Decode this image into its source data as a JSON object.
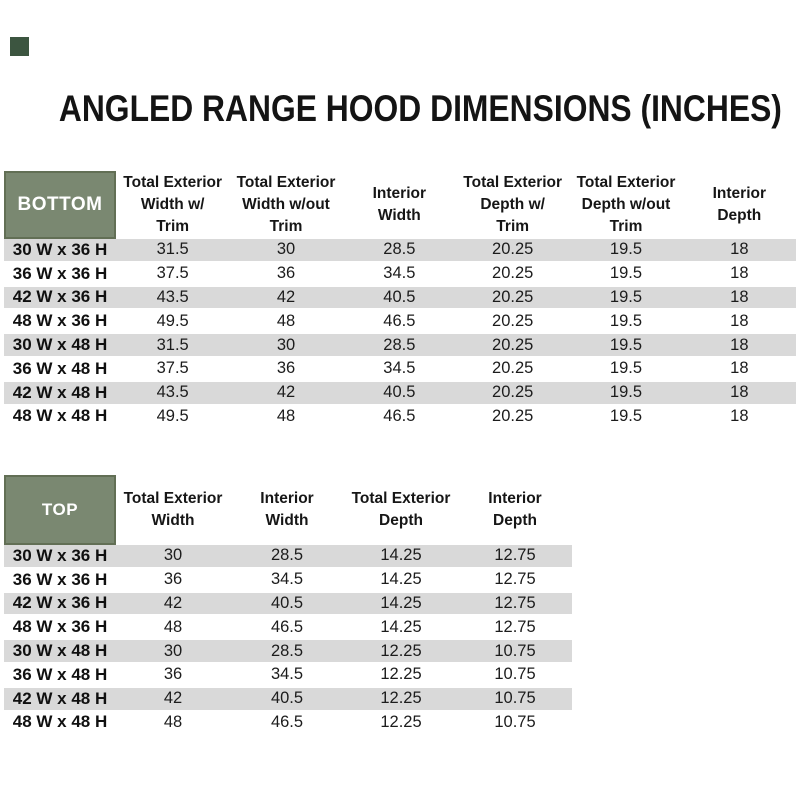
{
  "page": {
    "title": "ANGLED RANGE HOOD DIMENSIONS (INCHES)"
  },
  "colors": {
    "header_green": "#7a8871",
    "header_green_border": "#626f55",
    "stripe_gray": "#d9d9d9",
    "marker_green": "#3c5540"
  },
  "bottom_table": {
    "corner_label": "BOTTOM",
    "columns": [
      [
        "Total Exterior",
        "Width w/",
        "Trim"
      ],
      [
        "Total Exterior",
        "Width w/out",
        "Trim"
      ],
      [
        "Interior",
        "Width"
      ],
      [
        "Total Exterior",
        "Depth w/",
        "Trim"
      ],
      [
        "Total Exterior",
        "Depth w/out",
        "Trim"
      ],
      [
        "Interior",
        "Depth"
      ]
    ],
    "rows": [
      {
        "label": "30 W x 36 H",
        "values": [
          "31.5",
          "30",
          "28.5",
          "20.25",
          "19.5",
          "18"
        ]
      },
      {
        "label": "36 W x 36 H",
        "values": [
          "37.5",
          "36",
          "34.5",
          "20.25",
          "19.5",
          "18"
        ]
      },
      {
        "label": "42 W x 36 H",
        "values": [
          "43.5",
          "42",
          "40.5",
          "20.25",
          "19.5",
          "18"
        ]
      },
      {
        "label": "48 W x 36 H",
        "values": [
          "49.5",
          "48",
          "46.5",
          "20.25",
          "19.5",
          "18"
        ]
      },
      {
        "label": "30 W x 48 H",
        "values": [
          "31.5",
          "30",
          "28.5",
          "20.25",
          "19.5",
          "18"
        ]
      },
      {
        "label": "36 W x 48 H",
        "values": [
          "37.5",
          "36",
          "34.5",
          "20.25",
          "19.5",
          "18"
        ]
      },
      {
        "label": "42 W x 48 H",
        "values": [
          "43.5",
          "42",
          "40.5",
          "20.25",
          "19.5",
          "18"
        ]
      },
      {
        "label": "48 W x 48 H",
        "values": [
          "49.5",
          "48",
          "46.5",
          "20.25",
          "19.5",
          "18"
        ]
      }
    ]
  },
  "top_table": {
    "corner_label": "TOP",
    "columns": [
      [
        "Total Exterior",
        "Width"
      ],
      [
        "Interior",
        "Width"
      ],
      [
        "Total Exterior",
        "Depth"
      ],
      [
        "Interior",
        "Depth"
      ]
    ],
    "rows": [
      {
        "label": "30 W x 36 H",
        "values": [
          "30",
          "28.5",
          "14.25",
          "12.75"
        ]
      },
      {
        "label": "36 W x 36 H",
        "values": [
          "36",
          "34.5",
          "14.25",
          "12.75"
        ]
      },
      {
        "label": "42 W x 36 H",
        "values": [
          "42",
          "40.5",
          "14.25",
          "12.75"
        ]
      },
      {
        "label": "48 W x 36 H",
        "values": [
          "48",
          "46.5",
          "14.25",
          "12.75"
        ]
      },
      {
        "label": "30 W x 48 H",
        "values": [
          "30",
          "28.5",
          "12.25",
          "10.75"
        ]
      },
      {
        "label": "36 W x 48 H",
        "values": [
          "36",
          "34.5",
          "12.25",
          "10.75"
        ]
      },
      {
        "label": "42 W x 48 H",
        "values": [
          "42",
          "40.5",
          "12.25",
          "10.75"
        ]
      },
      {
        "label": "48 W x 48 H",
        "values": [
          "48",
          "46.5",
          "12.25",
          "10.75"
        ]
      }
    ]
  }
}
